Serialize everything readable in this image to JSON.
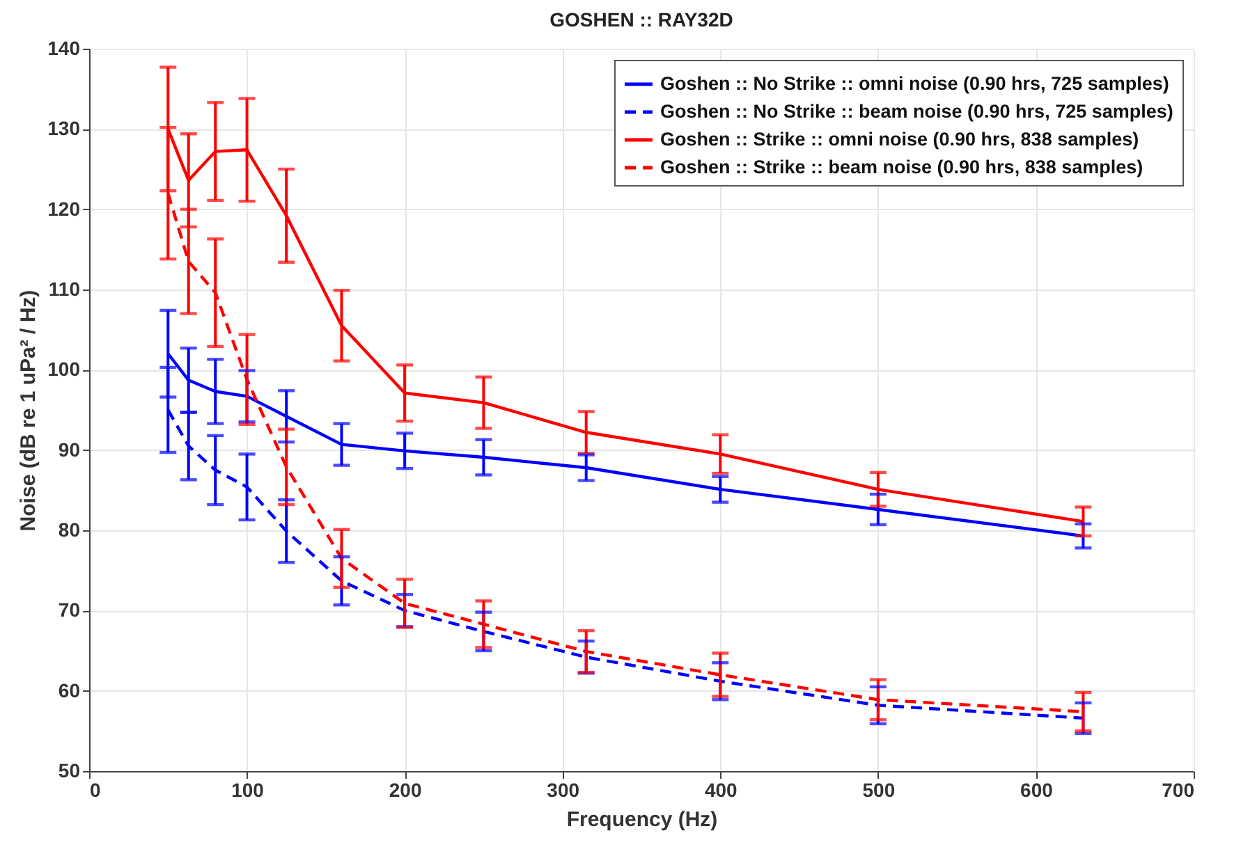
{
  "chart_data": {
    "type": "line",
    "title": "GOSHEN :: RAY32D",
    "xlabel": "Frequency (Hz)",
    "ylabel": "Noise (dB re 1 uPa² / Hz)",
    "x": [
      50,
      63,
      80,
      100,
      125,
      160,
      200,
      250,
      315,
      400,
      500,
      630
    ],
    "xlim": [
      0,
      700
    ],
    "xticks": [
      0,
      100,
      200,
      300,
      400,
      500,
      600,
      700
    ],
    "ylim": [
      50,
      140
    ],
    "yticks": [
      50,
      60,
      70,
      80,
      90,
      100,
      110,
      120,
      130,
      140
    ],
    "grid": true,
    "legend": "top right",
    "marker": "none",
    "series": [
      {
        "name": "Goshen :: No Strike :: omni noise (0.90 hrs, 725 samples)",
        "color": "#0000ff",
        "line_style": "solid",
        "values": [
          102.0,
          98.7,
          97.3,
          96.7,
          94.2,
          90.7,
          89.9,
          89.1,
          87.8,
          85.1,
          82.6,
          79.3
        ],
        "errors": [
          5.4,
          4.0,
          4.0,
          3.2,
          3.2,
          2.6,
          2.2,
          2.2,
          1.6,
          1.6,
          1.9,
          1.5
        ]
      },
      {
        "name": "Goshen :: No Strike :: beam noise (0.90 hrs, 725 samples)",
        "color": "#0000ff",
        "line_style": "dashed",
        "values": [
          95.0,
          90.5,
          87.5,
          85.4,
          79.9,
          73.7,
          70.0,
          67.4,
          64.2,
          61.2,
          58.2,
          56.6
        ],
        "errors": [
          5.3,
          4.2,
          4.3,
          4.1,
          3.9,
          3.0,
          2.0,
          2.4,
          2.0,
          2.3,
          2.3,
          1.9
        ]
      },
      {
        "name": "Goshen :: Strike :: omni noise (0.90 hrs, 838 samples)",
        "color": "#ff0000",
        "line_style": "solid",
        "values": [
          130.0,
          123.6,
          127.2,
          127.4,
          119.2,
          105.5,
          97.1,
          95.9,
          92.2,
          89.5,
          85.1,
          81.1
        ],
        "errors": [
          7.7,
          5.8,
          6.1,
          6.4,
          5.8,
          4.4,
          3.5,
          3.2,
          2.6,
          2.4,
          2.1,
          1.8
        ]
      },
      {
        "name": "Goshen :: Strike :: beam noise (0.90 hrs, 838 samples)",
        "color": "#ff0000",
        "line_style": "dashed",
        "values": [
          122.0,
          113.5,
          109.6,
          98.8,
          87.9,
          76.5,
          70.9,
          68.3,
          64.9,
          62.0,
          58.9,
          57.4
        ],
        "errors": [
          8.2,
          6.5,
          6.7,
          5.6,
          4.7,
          3.6,
          3.0,
          2.9,
          2.6,
          2.7,
          2.5,
          2.4
        ]
      }
    ]
  }
}
